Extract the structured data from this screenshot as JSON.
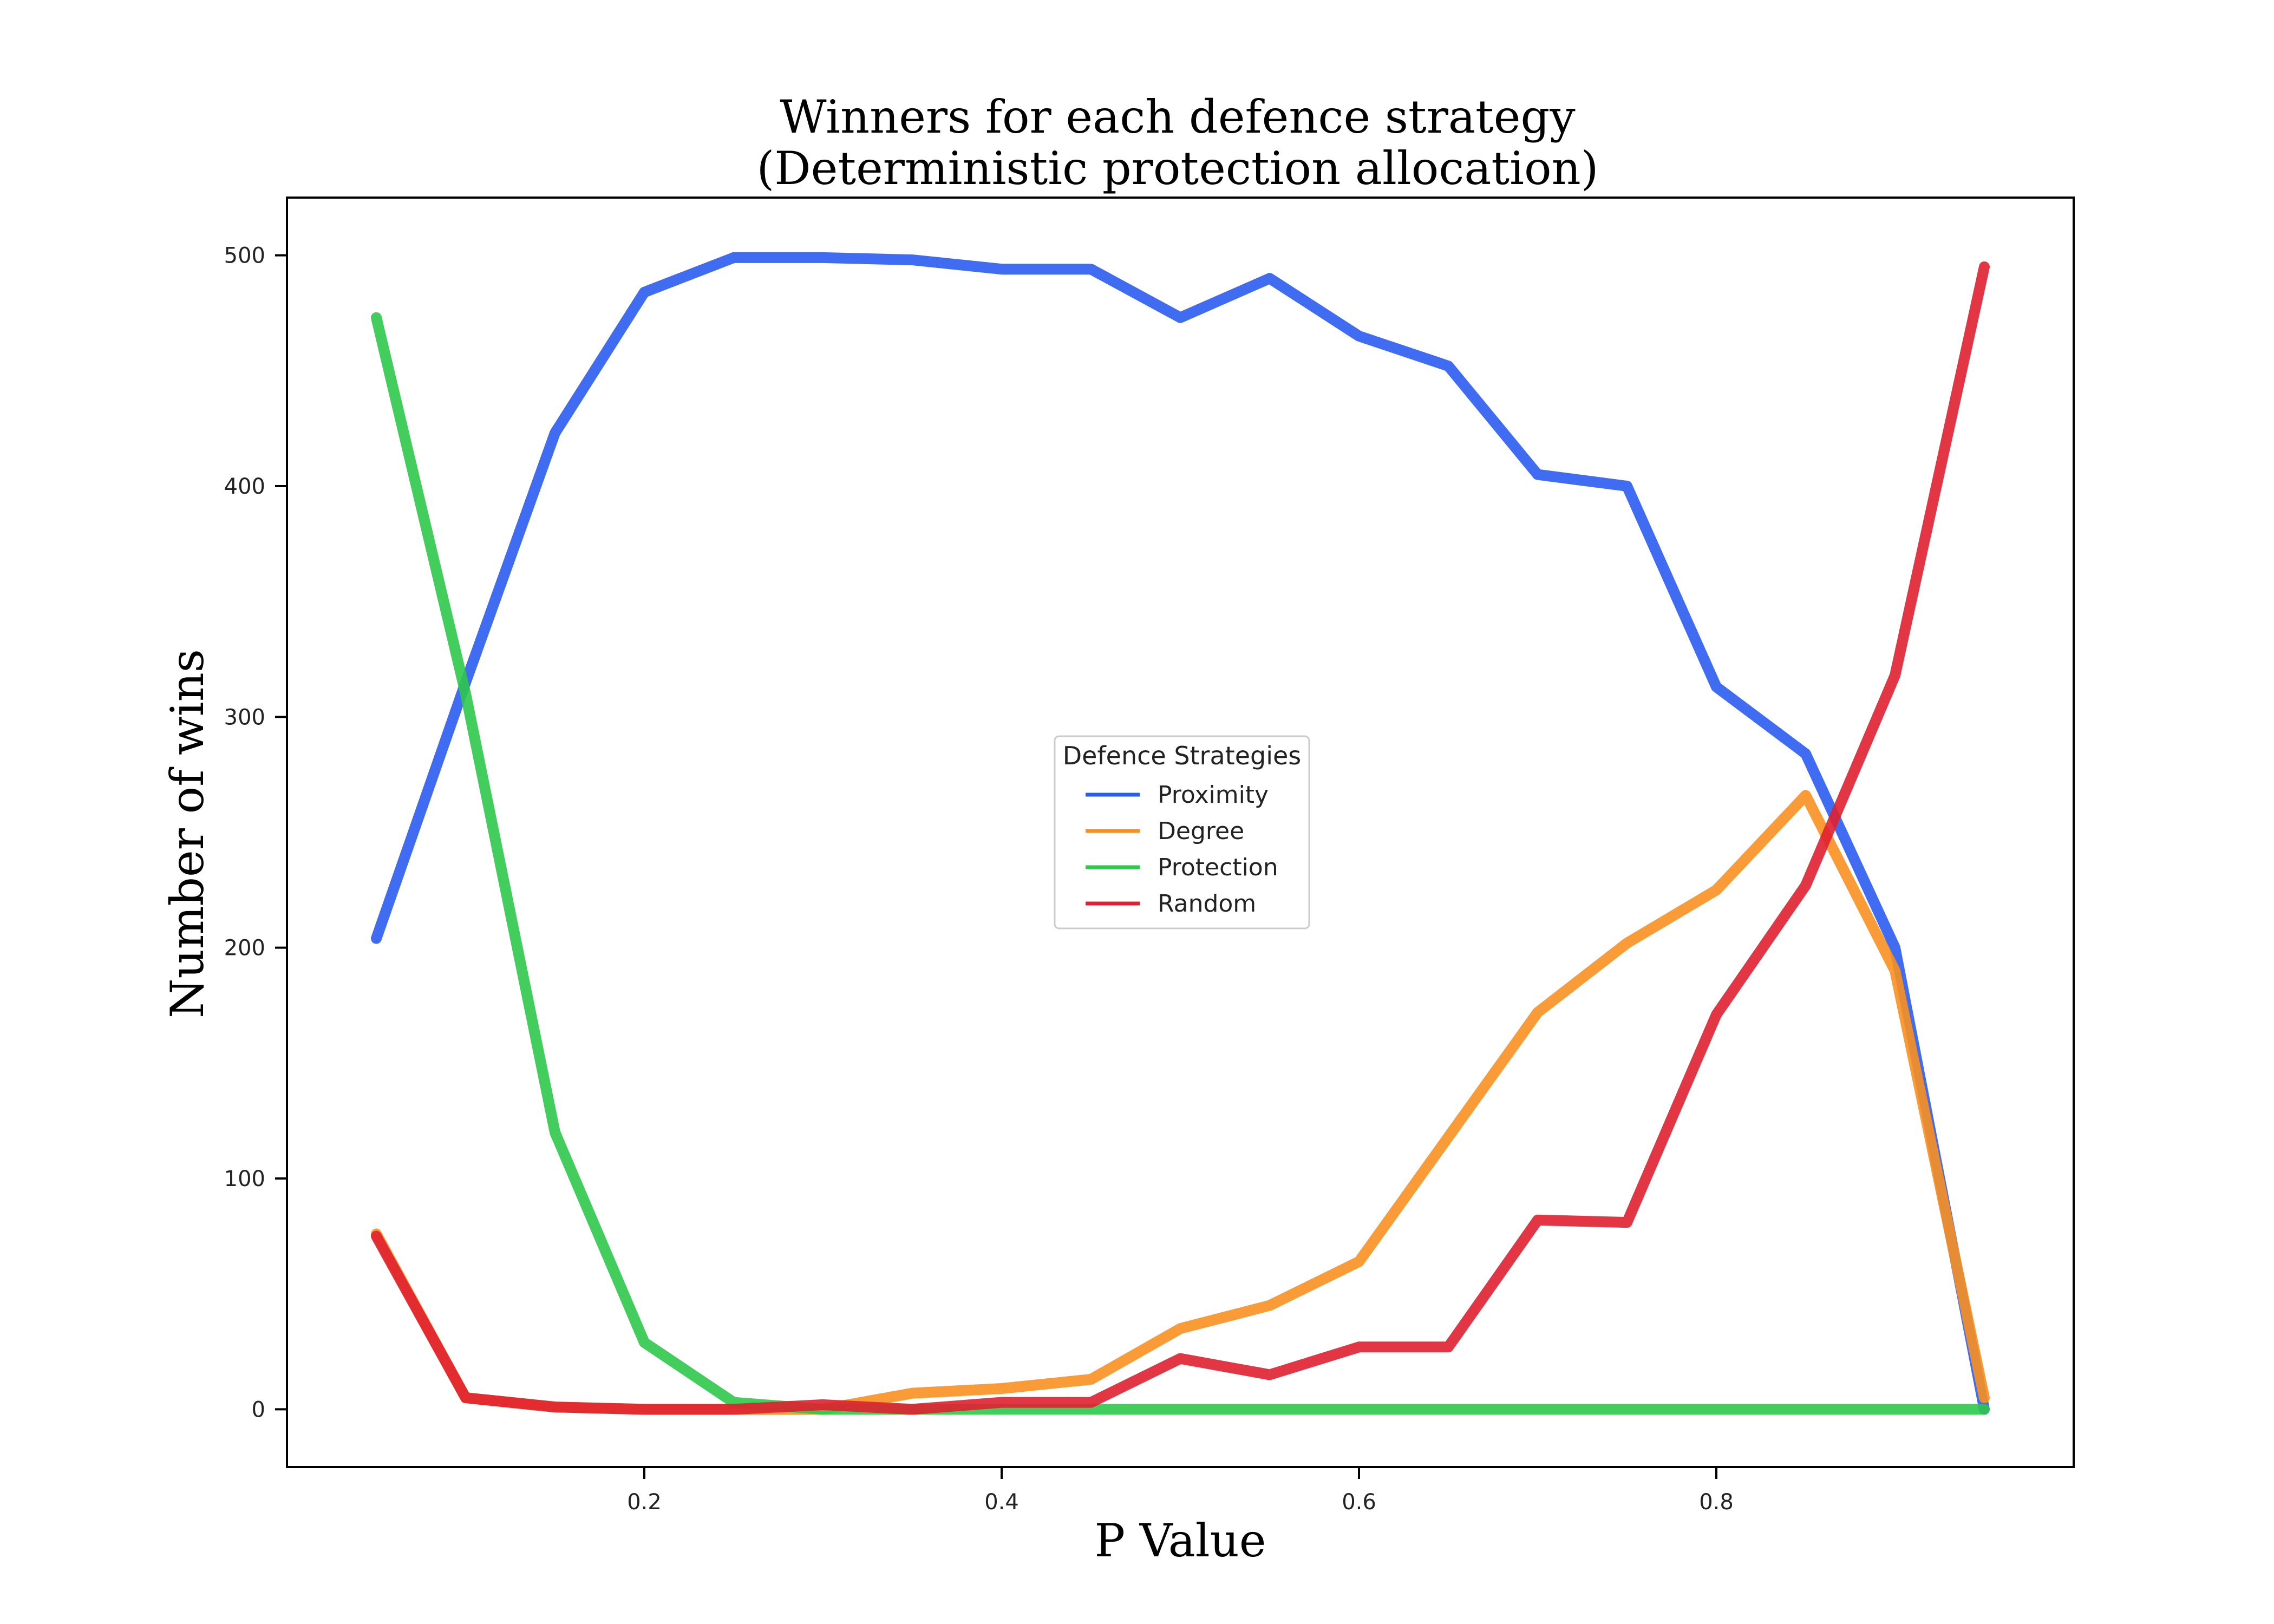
{
  "chart_data": {
    "type": "line",
    "title": [
      "Winners for each defence strategy",
      "(Deterministic protection allocation)"
    ],
    "xlabel": "P Value",
    "ylabel": "Number of wins",
    "xlim": [
      0.0,
      1.0
    ],
    "ylim": [
      -25,
      525
    ],
    "x_ticks": [
      0.2,
      0.4,
      0.6,
      0.8
    ],
    "y_ticks": [
      0,
      100,
      200,
      300,
      400,
      500
    ],
    "grid": false,
    "legend": {
      "title": "Defence Strategies",
      "placement": "center"
    },
    "x": [
      0.05,
      0.1,
      0.15,
      0.2,
      0.25,
      0.3,
      0.35,
      0.4,
      0.45,
      0.5,
      0.55,
      0.6,
      0.65,
      0.7,
      0.75,
      0.8,
      0.85,
      0.9,
      0.95
    ],
    "series": [
      {
        "name": "Proximity",
        "color": "#2b5cf0",
        "values": [
          204,
          315,
          423,
          484,
          499,
          499,
          498,
          494,
          494,
          473,
          490,
          465,
          452,
          405,
          400,
          313,
          284,
          200,
          0
        ]
      },
      {
        "name": "Degree",
        "color": "#f89020",
        "values": [
          76,
          5,
          1,
          0,
          0,
          0,
          7,
          9,
          13,
          35,
          45,
          64,
          118,
          172,
          202,
          225,
          266,
          190,
          5
        ]
      },
      {
        "name": "Protection",
        "color": "#2ec84a",
        "values": [
          473,
          310,
          120,
          29,
          3,
          0,
          0,
          0,
          0,
          0,
          0,
          0,
          0,
          0,
          0,
          0,
          0,
          0,
          0
        ]
      },
      {
        "name": "Random",
        "color": "#e02030",
        "values": [
          75,
          5,
          1,
          0,
          0,
          2,
          0,
          3,
          3,
          22,
          15,
          27,
          27,
          82,
          81,
          171,
          227,
          318,
          495
        ]
      }
    ]
  }
}
